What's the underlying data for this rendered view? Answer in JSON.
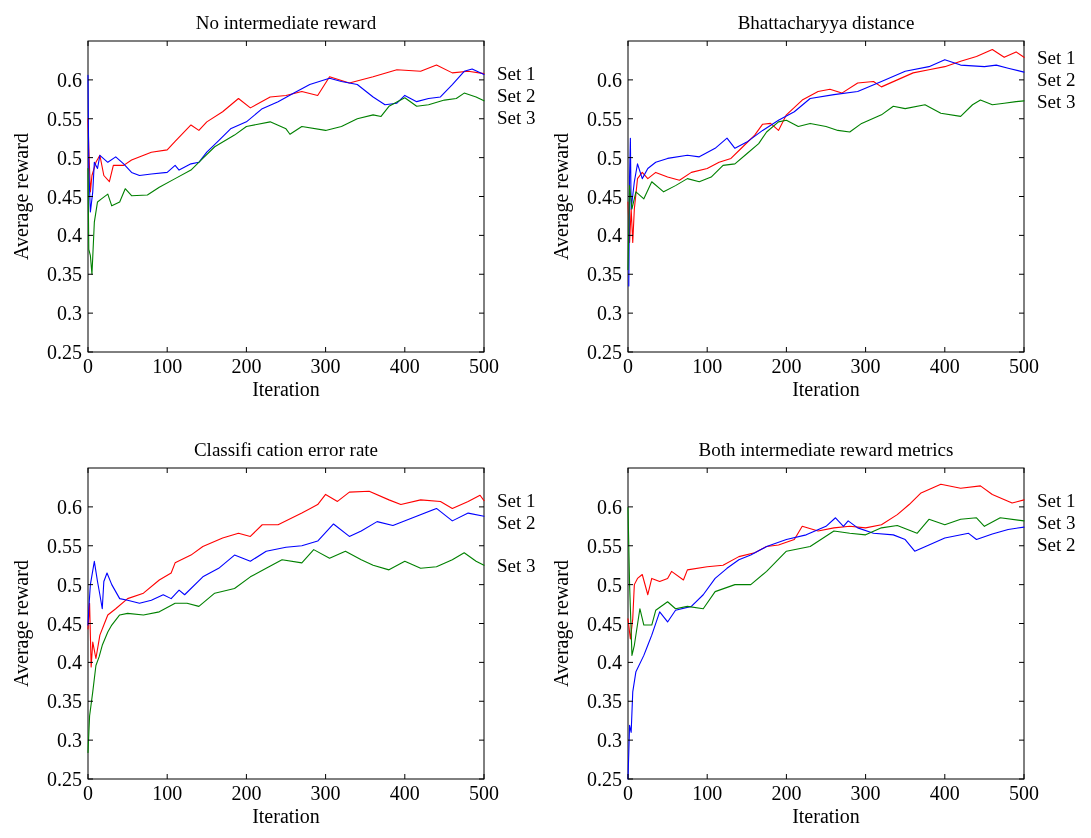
{
  "chart_data": [
    {
      "type": "line",
      "title": "No intermediate reward",
      "xlabel": "Iteration",
      "ylabel": "Average reward",
      "xlim": [
        0,
        500
      ],
      "xticks": [
        0,
        100,
        200,
        300,
        400,
        500
      ],
      "ylim": [
        0.25,
        0.65
      ],
      "yticks": [
        0.25,
        0.3,
        0.35,
        0.4,
        0.45,
        0.5,
        0.55,
        0.6
      ],
      "legend": "right",
      "series": [
        {
          "name": "Set 1",
          "color": "#ff0000",
          "x": [
            0,
            1,
            3,
            5,
            10,
            15,
            20,
            27,
            32,
            45,
            55,
            80,
            100,
            110,
            130,
            140,
            150,
            170,
            190,
            205,
            230,
            250,
            270,
            290,
            305,
            330,
            360,
            390,
            420,
            440,
            460,
            480,
            500
          ],
          "values": [
            0.55,
            0.512,
            0.456,
            0.477,
            0.494,
            0.503,
            0.477,
            0.469,
            0.49,
            0.49,
            0.497,
            0.507,
            0.51,
            0.521,
            0.542,
            0.535,
            0.546,
            0.559,
            0.576,
            0.564,
            0.578,
            0.58,
            0.585,
            0.58,
            0.604,
            0.596,
            0.604,
            0.613,
            0.611,
            0.619,
            0.609,
            0.611,
            0.608
          ]
        },
        {
          "name": "Set 2",
          "color": "#0000ff",
          "x": [
            0,
            1,
            3,
            6,
            8,
            12,
            15,
            25,
            35,
            45,
            55,
            65,
            80,
            100,
            110,
            115,
            130,
            140,
            150,
            165,
            180,
            200,
            220,
            240,
            260,
            280,
            305,
            320,
            340,
            360,
            375,
            390,
            400,
            415,
            430,
            445,
            460,
            475,
            485,
            500
          ],
          "values": [
            0.606,
            0.486,
            0.43,
            0.456,
            0.494,
            0.486,
            0.503,
            0.494,
            0.501,
            0.492,
            0.481,
            0.477,
            0.479,
            0.481,
            0.49,
            0.484,
            0.492,
            0.494,
            0.507,
            0.522,
            0.537,
            0.546,
            0.563,
            0.572,
            0.583,
            0.594,
            0.602,
            0.598,
            0.594,
            0.578,
            0.568,
            0.57,
            0.58,
            0.572,
            0.576,
            0.578,
            0.594,
            0.611,
            0.614,
            0.607
          ]
        },
        {
          "name": "Set 3",
          "color": "#008000",
          "x": [
            0,
            1,
            3,
            5,
            8,
            12,
            17,
            25,
            30,
            40,
            47,
            55,
            75,
            90,
            110,
            130,
            145,
            160,
            185,
            200,
            230,
            250,
            255,
            270,
            300,
            320,
            340,
            360,
            370,
            380,
            400,
            415,
            430,
            450,
            465,
            475,
            490,
            500
          ],
          "values": [
            0.486,
            0.382,
            0.374,
            0.35,
            0.417,
            0.443,
            0.447,
            0.453,
            0.438,
            0.443,
            0.46,
            0.451,
            0.452,
            0.462,
            0.473,
            0.484,
            0.499,
            0.514,
            0.529,
            0.54,
            0.546,
            0.537,
            0.53,
            0.54,
            0.535,
            0.54,
            0.55,
            0.555,
            0.553,
            0.566,
            0.577,
            0.566,
            0.568,
            0.574,
            0.576,
            0.583,
            0.578,
            0.573
          ]
        }
      ]
    },
    {
      "type": "line",
      "title": "Bhattacharyya distance",
      "xlabel": "Iteration",
      "ylabel": "Average reward",
      "xlim": [
        0,
        500
      ],
      "xticks": [
        0,
        100,
        200,
        300,
        400,
        500
      ],
      "ylim": [
        0.25,
        0.65
      ],
      "yticks": [
        0.25,
        0.3,
        0.35,
        0.4,
        0.45,
        0.5,
        0.55,
        0.6
      ],
      "legend": "right",
      "series": [
        {
          "name": "Set 1",
          "color": "#ff0000",
          "x": [
            0,
            2,
            4,
            6,
            8,
            12,
            18,
            25,
            35,
            50,
            65,
            80,
            100,
            115,
            130,
            145,
            160,
            170,
            180,
            190,
            200,
            220,
            240,
            255,
            270,
            290,
            310,
            320,
            340,
            360,
            380,
            400,
            420,
            440,
            460,
            475,
            490,
            500
          ],
          "values": [
            0.443,
            0.391,
            0.434,
            0.391,
            0.434,
            0.473,
            0.481,
            0.473,
            0.481,
            0.475,
            0.471,
            0.481,
            0.486,
            0.494,
            0.499,
            0.514,
            0.529,
            0.543,
            0.544,
            0.535,
            0.555,
            0.574,
            0.585,
            0.588,
            0.583,
            0.596,
            0.598,
            0.591,
            0.6,
            0.609,
            0.613,
            0.617,
            0.624,
            0.63,
            0.639,
            0.629,
            0.636,
            0.629
          ]
        },
        {
          "name": "Set 2",
          "color": "#0000ff",
          "x": [
            1,
            2,
            3,
            4,
            8,
            12,
            18,
            25,
            35,
            50,
            75,
            90,
            110,
            125,
            135,
            150,
            170,
            190,
            210,
            230,
            260,
            290,
            320,
            350,
            380,
            400,
            420,
            450,
            465,
            480,
            500
          ],
          "values": [
            0.335,
            0.477,
            0.525,
            0.434,
            0.469,
            0.492,
            0.473,
            0.486,
            0.494,
            0.499,
            0.503,
            0.501,
            0.512,
            0.525,
            0.512,
            0.52,
            0.535,
            0.548,
            0.559,
            0.576,
            0.581,
            0.585,
            0.598,
            0.611,
            0.617,
            0.626,
            0.619,
            0.617,
            0.619,
            0.615,
            0.61
          ]
        },
        {
          "name": "Set 3",
          "color": "#008000",
          "x": [
            0,
            2,
            5,
            10,
            20,
            30,
            45,
            60,
            75,
            90,
            105,
            120,
            135,
            150,
            165,
            175,
            190,
            200,
            215,
            230,
            250,
            265,
            280,
            295,
            320,
            335,
            350,
            375,
            395,
            420,
            435,
            445,
            460,
            475,
            490,
            500
          ],
          "values": [
            0.356,
            0.464,
            0.434,
            0.456,
            0.447,
            0.469,
            0.456,
            0.464,
            0.473,
            0.469,
            0.475,
            0.49,
            0.492,
            0.505,
            0.518,
            0.533,
            0.546,
            0.548,
            0.54,
            0.544,
            0.54,
            0.535,
            0.533,
            0.544,
            0.555,
            0.566,
            0.563,
            0.568,
            0.557,
            0.553,
            0.568,
            0.574,
            0.568,
            0.57,
            0.572,
            0.573
          ]
        }
      ]
    },
    {
      "type": "line",
      "title": "Classifi cation error rate",
      "xlabel": "Iteration",
      "ylabel": "Average reward",
      "xlim": [
        0,
        500
      ],
      "xticks": [
        0,
        100,
        200,
        300,
        400,
        500
      ],
      "ylim": [
        0.25,
        0.65
      ],
      "yticks": [
        0.25,
        0.3,
        0.35,
        0.4,
        0.45,
        0.5,
        0.55,
        0.6
      ],
      "legend": "right",
      "series": [
        {
          "name": "Set 1",
          "color": "#ff0000",
          "x": [
            0,
            2,
            4,
            6,
            10,
            15,
            20,
            25,
            35,
            50,
            70,
            90,
            105,
            110,
            130,
            145,
            170,
            190,
            205,
            220,
            240,
            270,
            290,
            300,
            315,
            330,
            355,
            380,
            395,
            420,
            445,
            460,
            480,
            495,
            500
          ],
          "values": [
            0.443,
            0.476,
            0.394,
            0.426,
            0.405,
            0.435,
            0.448,
            0.461,
            0.469,
            0.482,
            0.489,
            0.506,
            0.515,
            0.528,
            0.538,
            0.549,
            0.56,
            0.566,
            0.562,
            0.577,
            0.577,
            0.592,
            0.603,
            0.616,
            0.607,
            0.619,
            0.62,
            0.609,
            0.603,
            0.609,
            0.607,
            0.598,
            0.607,
            0.615,
            0.608
          ]
        },
        {
          "name": "Set 2",
          "color": "#0000ff",
          "x": [
            0,
            1,
            3,
            8,
            12,
            15,
            18,
            20,
            24,
            30,
            40,
            50,
            65,
            80,
            95,
            105,
            115,
            122,
            145,
            165,
            185,
            205,
            225,
            250,
            270,
            290,
            310,
            330,
            345,
            365,
            385,
            410,
            440,
            460,
            480,
            500
          ],
          "values": [
            0.448,
            0.469,
            0.5,
            0.53,
            0.504,
            0.487,
            0.469,
            0.504,
            0.515,
            0.5,
            0.482,
            0.48,
            0.476,
            0.48,
            0.487,
            0.482,
            0.493,
            0.487,
            0.51,
            0.521,
            0.538,
            0.53,
            0.543,
            0.548,
            0.55,
            0.556,
            0.578,
            0.562,
            0.569,
            0.581,
            0.576,
            0.586,
            0.598,
            0.582,
            0.592,
            0.588
          ]
        },
        {
          "name": "Set 3",
          "color": "#008000",
          "x": [
            0,
            2,
            6,
            10,
            14,
            18,
            25,
            30,
            40,
            50,
            70,
            90,
            110,
            125,
            140,
            160,
            185,
            205,
            225,
            245,
            270,
            285,
            305,
            325,
            345,
            360,
            380,
            400,
            420,
            440,
            460,
            475,
            490,
            500
          ],
          "values": [
            0.284,
            0.331,
            0.362,
            0.396,
            0.407,
            0.422,
            0.439,
            0.448,
            0.461,
            0.463,
            0.461,
            0.465,
            0.476,
            0.476,
            0.472,
            0.489,
            0.495,
            0.51,
            0.521,
            0.532,
            0.528,
            0.545,
            0.534,
            0.543,
            0.532,
            0.525,
            0.519,
            0.53,
            0.521,
            0.523,
            0.532,
            0.541,
            0.53,
            0.525
          ]
        }
      ]
    },
    {
      "type": "line",
      "title": "Both intermediate reward metrics",
      "xlabel": "Iteration",
      "ylabel": "Average reward",
      "xlim": [
        0,
        500
      ],
      "xticks": [
        0,
        100,
        200,
        300,
        400,
        500
      ],
      "ylim": [
        0.25,
        0.65
      ],
      "yticks": [
        0.25,
        0.3,
        0.35,
        0.4,
        0.45,
        0.5,
        0.55,
        0.6
      ],
      "legend": "right",
      "series": [
        {
          "name": "Set 1",
          "color": "#ff0000",
          "x": [
            0,
            3,
            6,
            8,
            12,
            18,
            25,
            30,
            40,
            50,
            55,
            70,
            75,
            100,
            120,
            140,
            160,
            175,
            190,
            210,
            220,
            240,
            260,
            280,
            300,
            320,
            340,
            355,
            370,
            395,
            420,
            445,
            460,
            485,
            500
          ],
          "values": [
            0.456,
            0.43,
            0.456,
            0.5,
            0.508,
            0.513,
            0.487,
            0.508,
            0.504,
            0.508,
            0.517,
            0.506,
            0.519,
            0.523,
            0.525,
            0.536,
            0.541,
            0.549,
            0.551,
            0.558,
            0.575,
            0.569,
            0.573,
            0.575,
            0.573,
            0.577,
            0.59,
            0.603,
            0.618,
            0.629,
            0.624,
            0.627,
            0.616,
            0.605,
            0.609
          ]
        },
        {
          "name": "Set 2",
          "color": "#0000ff",
          "x": [
            0,
            2,
            4,
            6,
            10,
            20,
            25,
            30,
            40,
            50,
            60,
            80,
            95,
            110,
            125,
            140,
            155,
            175,
            200,
            225,
            250,
            262,
            272,
            278,
            290,
            310,
            335,
            350,
            362,
            380,
            400,
            430,
            440,
            460,
            480,
            500
          ],
          "values": [
            0.25,
            0.319,
            0.31,
            0.362,
            0.388,
            0.409,
            0.422,
            0.435,
            0.465,
            0.452,
            0.467,
            0.472,
            0.487,
            0.508,
            0.521,
            0.532,
            0.538,
            0.549,
            0.558,
            0.564,
            0.575,
            0.586,
            0.575,
            0.582,
            0.573,
            0.566,
            0.564,
            0.558,
            0.543,
            0.551,
            0.56,
            0.566,
            0.558,
            0.565,
            0.571,
            0.574
          ]
        },
        {
          "name": "Set 3",
          "color": "#008000",
          "x": [
            0,
            2,
            5,
            8,
            15,
            20,
            30,
            35,
            50,
            60,
            75,
            95,
            110,
            135,
            155,
            175,
            200,
            230,
            260,
            280,
            300,
            320,
            340,
            365,
            380,
            400,
            420,
            440,
            450,
            470,
            500
          ],
          "values": [
            0.599,
            0.5,
            0.409,
            0.422,
            0.469,
            0.448,
            0.448,
            0.467,
            0.478,
            0.469,
            0.472,
            0.469,
            0.491,
            0.5,
            0.5,
            0.517,
            0.543,
            0.549,
            0.569,
            0.566,
            0.564,
            0.573,
            0.576,
            0.566,
            0.584,
            0.577,
            0.584,
            0.586,
            0.575,
            0.586,
            0.582
          ]
        }
      ]
    }
  ]
}
